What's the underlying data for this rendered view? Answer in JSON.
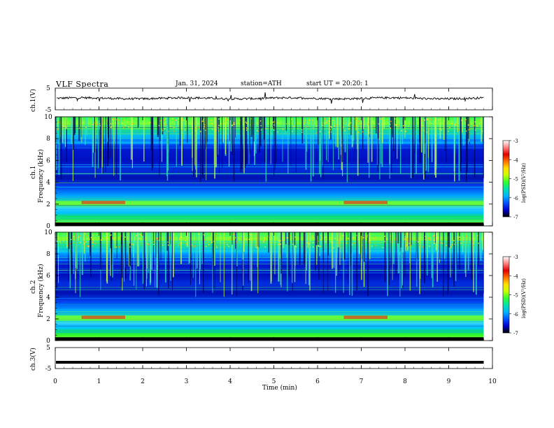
{
  "header": {
    "title": "VLF Spectra",
    "date": "Jan. 31, 2024",
    "station": "station=ATH",
    "start_ut": "start UT = 20:20: 1"
  },
  "colorbar": {
    "label": "log(PSD)(V²/Hz)",
    "ticks": [
      "-3",
      "-4",
      "-5",
      "-6",
      "-7"
    ],
    "colors": [
      "#000000",
      "#0000cc",
      "#0050ff",
      "#00b4ff",
      "#00e0b0",
      "#30ff30",
      "#c8ff00",
      "#ffe000",
      "#ff7000",
      "#e00000",
      "#ff8080",
      "#ffffff"
    ]
  },
  "chart_data": [
    {
      "type": "line",
      "name": "ch1-waveform",
      "ylabel": "ch.1(V)",
      "ylim": [
        -5,
        5
      ],
      "yticks": [
        "5",
        "-5"
      ],
      "xlim": [
        0,
        10
      ],
      "approx_level": 0.3,
      "noise_amplitude": 0.6
    },
    {
      "type": "heatmap",
      "name": "ch1-spectrogram",
      "ylabel_top": "ch.1",
      "ylabel": "Frequency (kHz)",
      "ylim": [
        0,
        10
      ],
      "yticks": [
        "10",
        "8",
        "6",
        "4",
        "2",
        "0"
      ],
      "xlim": [
        0,
        10
      ],
      "data_end_min": 9.8,
      "zlim": [
        -7,
        -3
      ],
      "high_emission_intervals_min": [
        [
          0.6,
          1.6
        ],
        [
          6.6,
          7.6
        ]
      ]
    },
    {
      "type": "heatmap",
      "name": "ch2-spectrogram",
      "ylabel_top": "ch.2",
      "ylabel": "Frequency (kHz)",
      "ylim": [
        0,
        10
      ],
      "yticks": [
        "10",
        "8",
        "6",
        "4",
        "2",
        "0"
      ],
      "xlim": [
        0,
        10
      ],
      "data_end_min": 9.8,
      "zlim": [
        -7,
        -3
      ],
      "high_emission_intervals_min": [
        [
          0.6,
          1.6
        ],
        [
          6.6,
          7.6
        ]
      ]
    },
    {
      "type": "line",
      "name": "ch3-waveform",
      "ylabel": "ch.3(V)",
      "ylim": [
        -5,
        5
      ],
      "yticks": [
        "5",
        "-5"
      ],
      "xlim": [
        0,
        10
      ],
      "approx_level": -2.0,
      "xlabel": "Time (min)",
      "xticks": [
        "0",
        "1",
        "2",
        "3",
        "4",
        "5",
        "6",
        "7",
        "8",
        "9",
        "10"
      ]
    }
  ]
}
